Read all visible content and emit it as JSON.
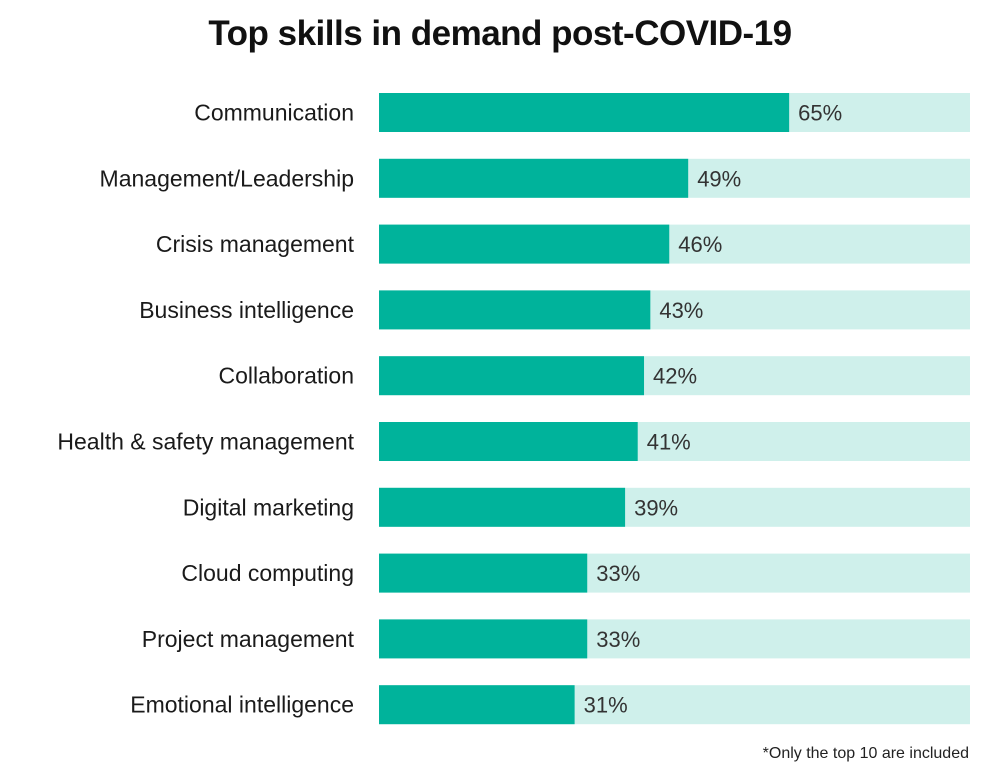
{
  "chart_data": {
    "type": "bar",
    "orientation": "horizontal",
    "title": "Top skills in demand post-COVID-19",
    "categories": [
      "Communication",
      "Management/Leadership",
      "Crisis management",
      "Business intelligence",
      "Collaboration",
      "Health & safety management",
      "Digital marketing",
      "Cloud computing",
      "Project management",
      "Emotional intelligence"
    ],
    "values": [
      65,
      49,
      46,
      43,
      42,
      41,
      39,
      33,
      33,
      31
    ],
    "value_labels": [
      "65%",
      "49%",
      "46%",
      "43%",
      "42%",
      "41%",
      "39%",
      "33%",
      "33%",
      "31%"
    ],
    "xlim": [
      0,
      100
    ],
    "unit": "%",
    "grid": false,
    "legend": "none",
    "footnote": "*Only the top 10 are included",
    "colors": {
      "bar": "#00B39B",
      "track": "#CFF0EB",
      "label_text": "#1a1a1a",
      "value_text": "#333333"
    }
  }
}
